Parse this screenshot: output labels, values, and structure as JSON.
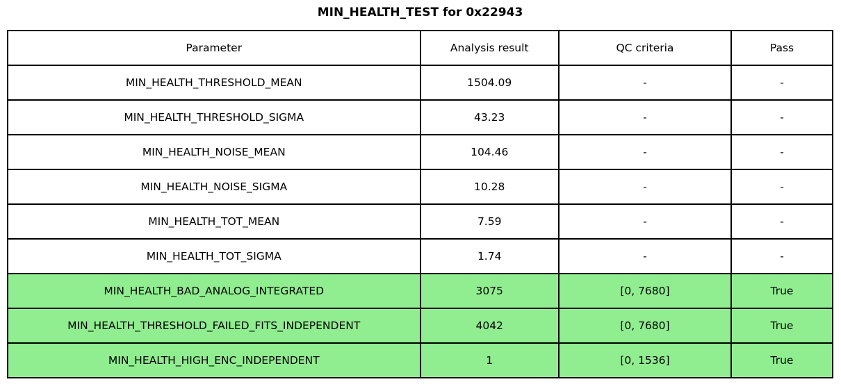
{
  "title": "MIN_HEALTH_TEST for 0x22943",
  "colors": {
    "pass_green": "#90ee90",
    "border": "#000000",
    "background": "#ffffff",
    "text": "#000000"
  },
  "table": {
    "columns": [
      "Parameter",
      "Analysis result",
      "QC criteria",
      "Pass"
    ],
    "rows": [
      {
        "parameter": "MIN_HEALTH_THRESHOLD_MEAN",
        "result": "1504.09",
        "qc": "-",
        "pass": "-",
        "highlight": false
      },
      {
        "parameter": "MIN_HEALTH_THRESHOLD_SIGMA",
        "result": "43.23",
        "qc": "-",
        "pass": "-",
        "highlight": false
      },
      {
        "parameter": "MIN_HEALTH_NOISE_MEAN",
        "result": "104.46",
        "qc": "-",
        "pass": "-",
        "highlight": false
      },
      {
        "parameter": "MIN_HEALTH_NOISE_SIGMA",
        "result": "10.28",
        "qc": "-",
        "pass": "-",
        "highlight": false
      },
      {
        "parameter": "MIN_HEALTH_TOT_MEAN",
        "result": "7.59",
        "qc": "-",
        "pass": "-",
        "highlight": false
      },
      {
        "parameter": "MIN_HEALTH_TOT_SIGMA",
        "result": "1.74",
        "qc": "-",
        "pass": "-",
        "highlight": false
      },
      {
        "parameter": "MIN_HEALTH_BAD_ANALOG_INTEGRATED",
        "result": "3075",
        "qc": "[0, 7680]",
        "pass": "True",
        "highlight": true
      },
      {
        "parameter": "MIN_HEALTH_THRESHOLD_FAILED_FITS_INDEPENDENT",
        "result": "4042",
        "qc": "[0, 7680]",
        "pass": "True",
        "highlight": true
      },
      {
        "parameter": "MIN_HEALTH_HIGH_ENC_INDEPENDENT",
        "result": "1",
        "qc": "[0, 1536]",
        "pass": "True",
        "highlight": true
      }
    ]
  }
}
